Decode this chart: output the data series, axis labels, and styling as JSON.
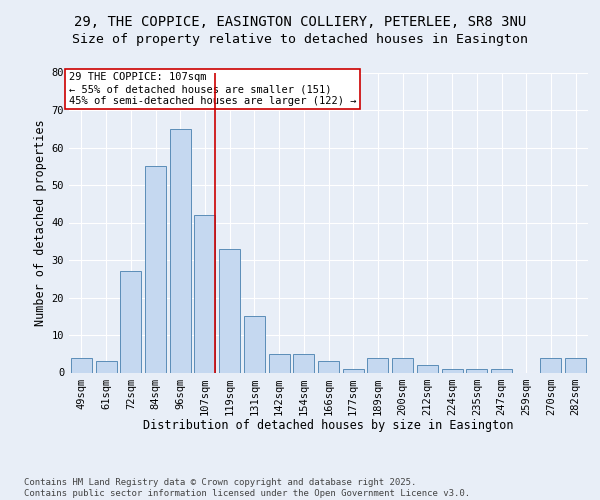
{
  "title_line1": "29, THE COPPICE, EASINGTON COLLIERY, PETERLEE, SR8 3NU",
  "title_line2": "Size of property relative to detached houses in Easington",
  "xlabel": "Distribution of detached houses by size in Easington",
  "ylabel": "Number of detached properties",
  "bar_labels": [
    "49sqm",
    "61sqm",
    "72sqm",
    "84sqm",
    "96sqm",
    "107sqm",
    "119sqm",
    "131sqm",
    "142sqm",
    "154sqm",
    "166sqm",
    "177sqm",
    "189sqm",
    "200sqm",
    "212sqm",
    "224sqm",
    "235sqm",
    "247sqm",
    "259sqm",
    "270sqm",
    "282sqm"
  ],
  "bar_values": [
    4,
    3,
    27,
    55,
    65,
    42,
    33,
    15,
    5,
    5,
    3,
    1,
    4,
    4,
    2,
    1,
    1,
    1,
    0,
    4,
    4
  ],
  "bar_color": "#c5d8f0",
  "bar_edge_color": "#5b8db8",
  "highlight_index": 5,
  "highlight_line_color": "#cc0000",
  "annotation_text": "29 THE COPPICE: 107sqm\n← 55% of detached houses are smaller (151)\n45% of semi-detached houses are larger (122) →",
  "annotation_box_color": "#ffffff",
  "annotation_box_edge": "#cc0000",
  "ylim": [
    0,
    80
  ],
  "yticks": [
    0,
    10,
    20,
    30,
    40,
    50,
    60,
    70,
    80
  ],
  "background_color": "#e8eef7",
  "grid_color": "#ffffff",
  "footer_text": "Contains HM Land Registry data © Crown copyright and database right 2025.\nContains public sector information licensed under the Open Government Licence v3.0.",
  "title_fontsize": 10,
  "subtitle_fontsize": 9.5,
  "axis_label_fontsize": 8.5,
  "tick_fontsize": 7.5,
  "annotation_fontsize": 7.5,
  "footer_fontsize": 6.5
}
